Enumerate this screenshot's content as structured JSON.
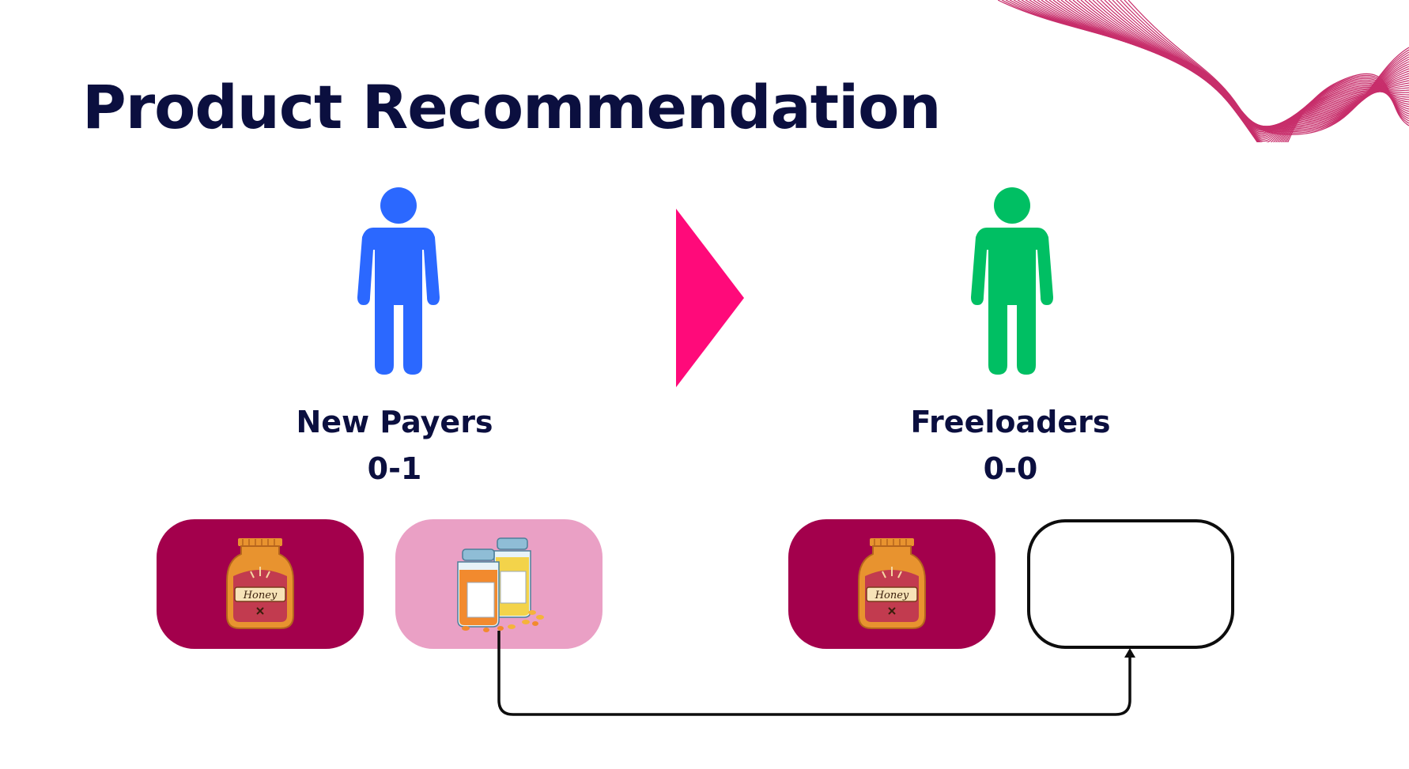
{
  "slide": {
    "title": "Product Recommendation"
  },
  "groups": [
    {
      "name": "New Payers",
      "score": "0-1",
      "color": "#2b68ff",
      "icon": "person-icon",
      "products": [
        {
          "item": "honey-jar-icon",
          "label": "Honey",
          "card_color": "#a3004c"
        },
        {
          "item": "pill-bottles-icon",
          "card_color": "#eaa0c5"
        }
      ]
    },
    {
      "name": "Freeloaders",
      "score": "0-0",
      "color": "#00bf63",
      "icon": "person-icon",
      "products": [
        {
          "item": "honey-jar-icon",
          "label": "Honey",
          "card_color": "#a3004c"
        },
        {
          "item": "empty-slot"
        }
      ]
    }
  ],
  "transition": {
    "icon": "triangle-arrow-icon",
    "color": "#ff0a7a"
  },
  "connector": {
    "icon": "arrow-connector",
    "color": "#0d0d0d"
  },
  "decoration": {
    "icon": "wave-lines-decoration",
    "color": "#c2185b"
  }
}
